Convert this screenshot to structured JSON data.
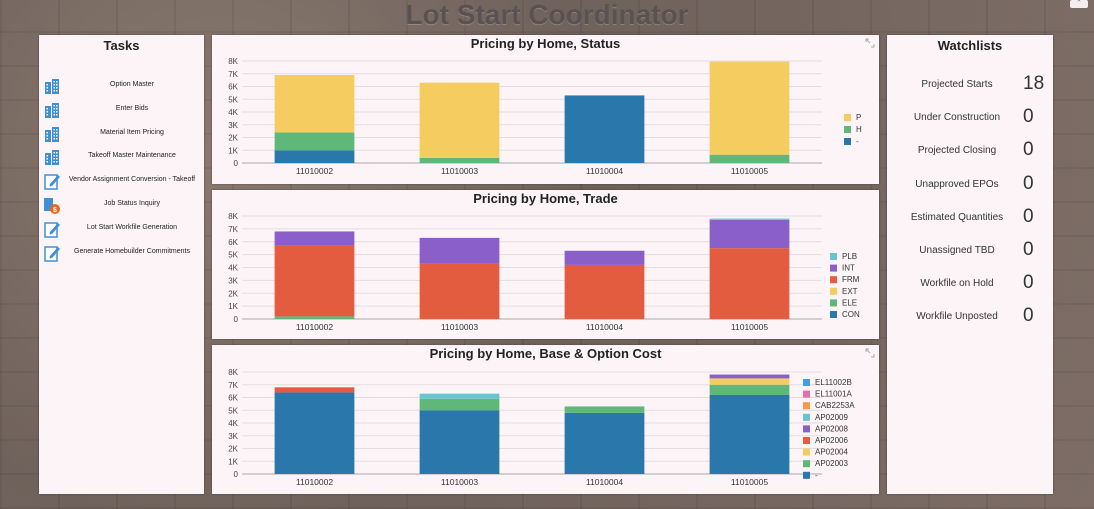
{
  "header": {
    "title": "Lot Start Coordinator"
  },
  "tasks": {
    "title": "Tasks",
    "items": [
      {
        "label": "Option Master",
        "icon": "building-icon"
      },
      {
        "label": "Enter Bids",
        "icon": "building-icon"
      },
      {
        "label": "Material Item Pricing",
        "icon": "building-icon"
      },
      {
        "label": "Takeoff Master Maintenance",
        "icon": "building-icon"
      },
      {
        "label": "Vendor Assignment Conversion - Takeoff",
        "icon": "edit-form-icon"
      },
      {
        "label": "Job Status Inquiry",
        "icon": "inquiry-icon"
      },
      {
        "label": "Lot Start Workfile Generation",
        "icon": "edit-form-icon"
      },
      {
        "label": "Generate Homebuilder Commitments",
        "icon": "edit-form-icon"
      }
    ]
  },
  "watchlists": {
    "title": "Watchlists",
    "items": [
      {
        "label": "Projected Starts",
        "value": "18"
      },
      {
        "label": "Under Construction",
        "value": "0"
      },
      {
        "label": "Projected Closing",
        "value": "0"
      },
      {
        "label": "Unapproved EPOs",
        "value": "0"
      },
      {
        "label": "Estimated Quantities",
        "value": "0"
      },
      {
        "label": "Unassigned TBD",
        "value": "0"
      },
      {
        "label": "Workfile on Hold",
        "value": "0"
      },
      {
        "label": "Workfile Unposted",
        "value": "0"
      }
    ]
  },
  "chart_data": [
    {
      "type": "bar",
      "stacked": true,
      "title": "Pricing by Home, Status",
      "categories": [
        "11010002",
        "11010003",
        "11010004",
        "11010005"
      ],
      "yticks": [
        "0",
        "1K",
        "2K",
        "3K",
        "4K",
        "5K",
        "6K",
        "7K",
        "8K"
      ],
      "ylim": [
        0,
        8000
      ],
      "legend_position": "right",
      "series": [
        {
          "name": "-",
          "color": "#2a77ab",
          "values": [
            1000,
            0,
            5300,
            0
          ]
        },
        {
          "name": "H",
          "color": "#5fb87a",
          "values": [
            1400,
            400,
            0,
            650
          ]
        },
        {
          "name": "P",
          "color": "#f5cc60",
          "values": [
            4500,
            5900,
            0,
            7300
          ]
        }
      ]
    },
    {
      "type": "bar",
      "stacked": true,
      "title": "Pricing by Home, Trade",
      "categories": [
        "11010002",
        "11010003",
        "11010004",
        "11010005"
      ],
      "yticks": [
        "0",
        "1K",
        "2K",
        "3K",
        "4K",
        "5K",
        "6K",
        "7K",
        "8K"
      ],
      "ylim": [
        0,
        8000
      ],
      "legend_position": "right",
      "series": [
        {
          "name": "CON",
          "color": "#2a77ab",
          "values": [
            0,
            0,
            0,
            0
          ]
        },
        {
          "name": "ELE",
          "color": "#5fb87a",
          "values": [
            200,
            0,
            0,
            0
          ]
        },
        {
          "name": "EXT",
          "color": "#f5cc60",
          "values": [
            0,
            0,
            0,
            0
          ]
        },
        {
          "name": "FRM",
          "color": "#e45c3f",
          "values": [
            5500,
            4300,
            4200,
            5500
          ]
        },
        {
          "name": "INT",
          "color": "#8a5fc9",
          "values": [
            1100,
            2000,
            1100,
            2200
          ]
        },
        {
          "name": "PLB",
          "color": "#67c5cf",
          "values": [
            0,
            0,
            0,
            100
          ]
        }
      ]
    },
    {
      "type": "bar",
      "stacked": true,
      "title": "Pricing by Home, Base & Option Cost",
      "categories": [
        "11010002",
        "11010003",
        "11010004",
        "11010005"
      ],
      "yticks": [
        "0",
        "1K",
        "2K",
        "3K",
        "4K",
        "5K",
        "6K",
        "7K",
        "8K"
      ],
      "ylim": [
        0,
        8000
      ],
      "legend_position": "right",
      "series": [
        {
          "name": "-",
          "color": "#2a77ab",
          "values": [
            6400,
            5000,
            4800,
            6200
          ]
        },
        {
          "name": "AP02003",
          "color": "#5fb87a",
          "values": [
            0,
            900,
            500,
            800
          ]
        },
        {
          "name": "AP02004",
          "color": "#f5cc60",
          "values": [
            0,
            0,
            0,
            500
          ]
        },
        {
          "name": "AP02006",
          "color": "#e45c3f",
          "values": [
            400,
            0,
            0,
            0
          ]
        },
        {
          "name": "AP02008",
          "color": "#8a5fc9",
          "values": [
            0,
            0,
            0,
            300
          ]
        },
        {
          "name": "AP02009",
          "color": "#67c5cf",
          "values": [
            0,
            400,
            0,
            0
          ]
        },
        {
          "name": "CAB2253A",
          "color": "#f59a4a",
          "values": [
            0,
            0,
            0,
            0
          ]
        },
        {
          "name": "EL11001A",
          "color": "#ea6ca8",
          "values": [
            0,
            0,
            0,
            0
          ]
        },
        {
          "name": "EL11002B",
          "color": "#3ea2e0",
          "values": [
            0,
            0,
            0,
            0
          ]
        }
      ]
    }
  ]
}
